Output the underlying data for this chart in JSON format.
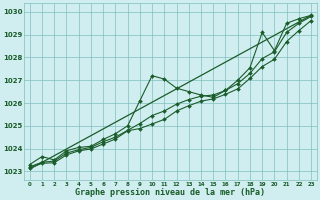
{
  "title": "Graphe pression niveau de la mer (hPa)",
  "xlabel_fontsize": 6.0,
  "bg_color": "#d0eef0",
  "grid_color": "#80c0c0",
  "line_color": "#1a5c2a",
  "xlim": [
    -0.5,
    23.5
  ],
  "ylim": [
    1022.6,
    1030.4
  ],
  "yticks": [
    1023,
    1024,
    1025,
    1026,
    1027,
    1028,
    1029,
    1030
  ],
  "xticks": [
    0,
    1,
    2,
    3,
    4,
    5,
    6,
    7,
    8,
    9,
    10,
    11,
    12,
    13,
    14,
    15,
    16,
    17,
    18,
    19,
    20,
    21,
    22,
    23
  ],
  "series": [
    {
      "x": [
        0,
        1,
        2,
        3,
        4,
        5,
        6,
        7,
        8,
        9,
        10,
        11,
        12,
        13,
        14,
        15,
        16,
        17,
        18,
        19,
        20,
        21,
        22,
        23
      ],
      "y": [
        1023.3,
        1023.65,
        1023.5,
        1023.9,
        1024.05,
        1024.1,
        1024.4,
        1024.65,
        1025.0,
        1026.1,
        1027.2,
        1027.05,
        1026.65,
        1026.5,
        1026.35,
        1026.25,
        1026.55,
        1027.0,
        1027.55,
        1029.1,
        1028.3,
        1029.5,
        1029.7,
        1029.85
      ],
      "marker": "D",
      "markersize": 2.0,
      "linewidth": 0.8
    },
    {
      "x": [
        0,
        1,
        2,
        3,
        4,
        5,
        6,
        7,
        8,
        9,
        10,
        11,
        12,
        13,
        14,
        15,
        16,
        17,
        18,
        19,
        20,
        21,
        22,
        23
      ],
      "y": [
        1023.2,
        1023.4,
        1023.45,
        1023.8,
        1023.95,
        1024.05,
        1024.3,
        1024.5,
        1024.8,
        1025.1,
        1025.45,
        1025.65,
        1025.95,
        1026.15,
        1026.3,
        1026.35,
        1026.55,
        1026.85,
        1027.3,
        1027.95,
        1028.25,
        1029.1,
        1029.5,
        1029.8
      ],
      "marker": "D",
      "markersize": 2.0,
      "linewidth": 0.8
    },
    {
      "x": [
        0,
        1,
        2,
        3,
        4,
        5,
        6,
        7,
        8,
        9,
        10,
        11,
        12,
        13,
        14,
        15,
        16,
        17,
        18,
        19,
        20,
        21,
        22,
        23
      ],
      "y": [
        1023.15,
        1023.35,
        1023.38,
        1023.72,
        1023.9,
        1023.98,
        1024.2,
        1024.42,
        1024.78,
        1024.88,
        1025.08,
        1025.28,
        1025.65,
        1025.88,
        1026.08,
        1026.18,
        1026.38,
        1026.62,
        1027.08,
        1027.6,
        1027.92,
        1028.7,
        1029.18,
        1029.62
      ],
      "marker": "D",
      "markersize": 2.0,
      "linewidth": 0.8
    },
    {
      "x": [
        0,
        23
      ],
      "y": [
        1023.1,
        1029.85
      ],
      "marker": null,
      "markersize": 0,
      "linewidth": 0.9
    }
  ]
}
